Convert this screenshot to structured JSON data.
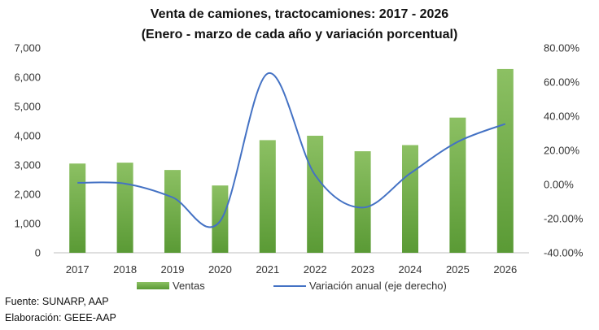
{
  "chart_data": {
    "type": "bar+line",
    "title": "Venta de camiones, tractocamiones: 2017 - 2026",
    "subtitle": "(Enero - marzo de cada año y variación porcentual)",
    "categories": [
      "2017",
      "2018",
      "2019",
      "2020",
      "2021",
      "2022",
      "2023",
      "2024",
      "2025",
      "2026"
    ],
    "series": [
      {
        "name": "Ventas",
        "type": "bar",
        "axis": "left",
        "values": [
          3050,
          3080,
          2830,
          2300,
          3850,
          4000,
          3470,
          3680,
          4620,
          6280
        ]
      },
      {
        "name": "Variación anual (eje derecho)",
        "type": "line",
        "axis": "right",
        "values": [
          1.0,
          0.5,
          -7.5,
          -21.5,
          65.0,
          5.5,
          -13.5,
          6.5,
          25.0,
          35.5
        ]
      }
    ],
    "y_left": {
      "min": 0,
      "max": 7000,
      "step": 1000,
      "tick_labels": [
        "0",
        "1,000",
        "2,000",
        "3,000",
        "4,000",
        "5,000",
        "6,000",
        "7,000"
      ]
    },
    "y_right": {
      "min": -40,
      "max": 80,
      "step": 20,
      "tick_labels": [
        "-40.00%",
        "-20.00%",
        "0.00%",
        "20.00%",
        "40.00%",
        "60.00%",
        "80.00%"
      ]
    },
    "legend_position": "bottom",
    "colors": {
      "bar_top": "#8cc063",
      "bar_bottom": "#5a9a35",
      "line": "#4472c4",
      "axis": "#bfbfbf"
    }
  },
  "footer": {
    "source": "Fuente: SUNARP, AAP",
    "elaboration": "Elaboración: GEEE-AAP"
  }
}
